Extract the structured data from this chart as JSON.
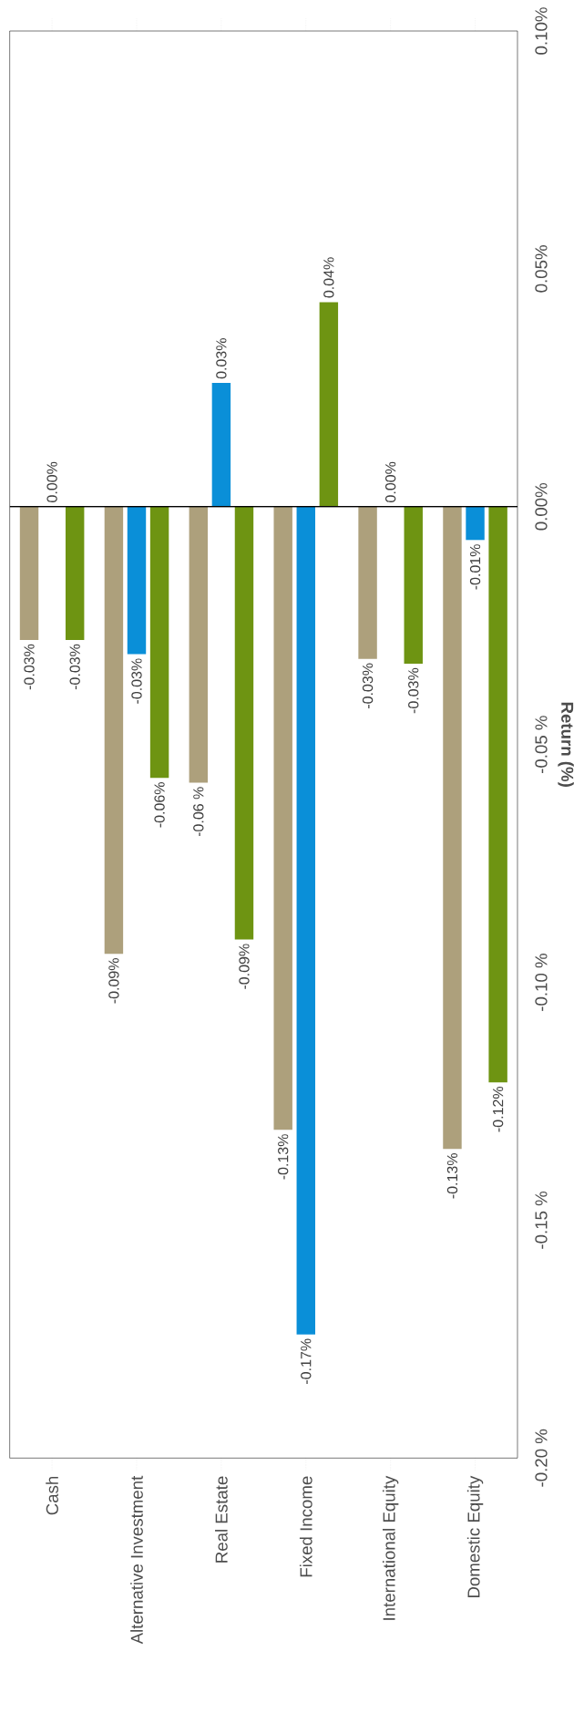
{
  "chart_data": {
    "type": "bar",
    "ylabel": "Return (%)",
    "categories": [
      "Cash",
      "Alternative Investment",
      "Real Estate",
      "Fixed Income",
      "International Equity",
      "Domestic Equity"
    ],
    "series": [
      {
        "color": "#ada07c",
        "values": [
          -0.028,
          -0.094,
          -0.058,
          -0.131,
          -0.032,
          -0.135
        ],
        "value_labels": [
          "-0.03%",
          "-0.09%",
          "-0.06 %",
          "-0.13%",
          "-0.03%",
          "-0.13%"
        ]
      },
      {
        "color": "#0a8fd8",
        "values": [
          0.0,
          -0.031,
          0.026,
          -0.174,
          0.0,
          -0.007
        ],
        "value_labels": [
          "0.00%",
          "-0.03%",
          "0.03%",
          "-0.17%",
          "0.00%",
          "-0.01%"
        ]
      },
      {
        "color": "#6e9412",
        "values": [
          -0.028,
          -0.057,
          -0.091,
          0.043,
          -0.033,
          -0.121
        ],
        "value_labels": [
          "-0.03%",
          "-0.06%",
          "-0.09%",
          "0.04%",
          "-0.03%",
          "-0.12%"
        ]
      }
    ],
    "ylim": [
      -0.2,
      0.1
    ],
    "yticks": [
      {
        "value": -0.2,
        "label": "-0.20 %"
      },
      {
        "value": -0.15,
        "label": "-0.15 %"
      },
      {
        "value": -0.1,
        "label": "-0.10 %"
      },
      {
        "value": -0.05,
        "label": "-0.05 %"
      },
      {
        "value": 0,
        "label": "0.00%"
      },
      {
        "value": 0.05,
        "label": "0.05%"
      },
      {
        "value": 0.1,
        "label": "0.10%"
      }
    ],
    "ref_lines": [
      {
        "axis": "y",
        "value": 0,
        "color": "#000000"
      }
    ],
    "grid": false
  }
}
